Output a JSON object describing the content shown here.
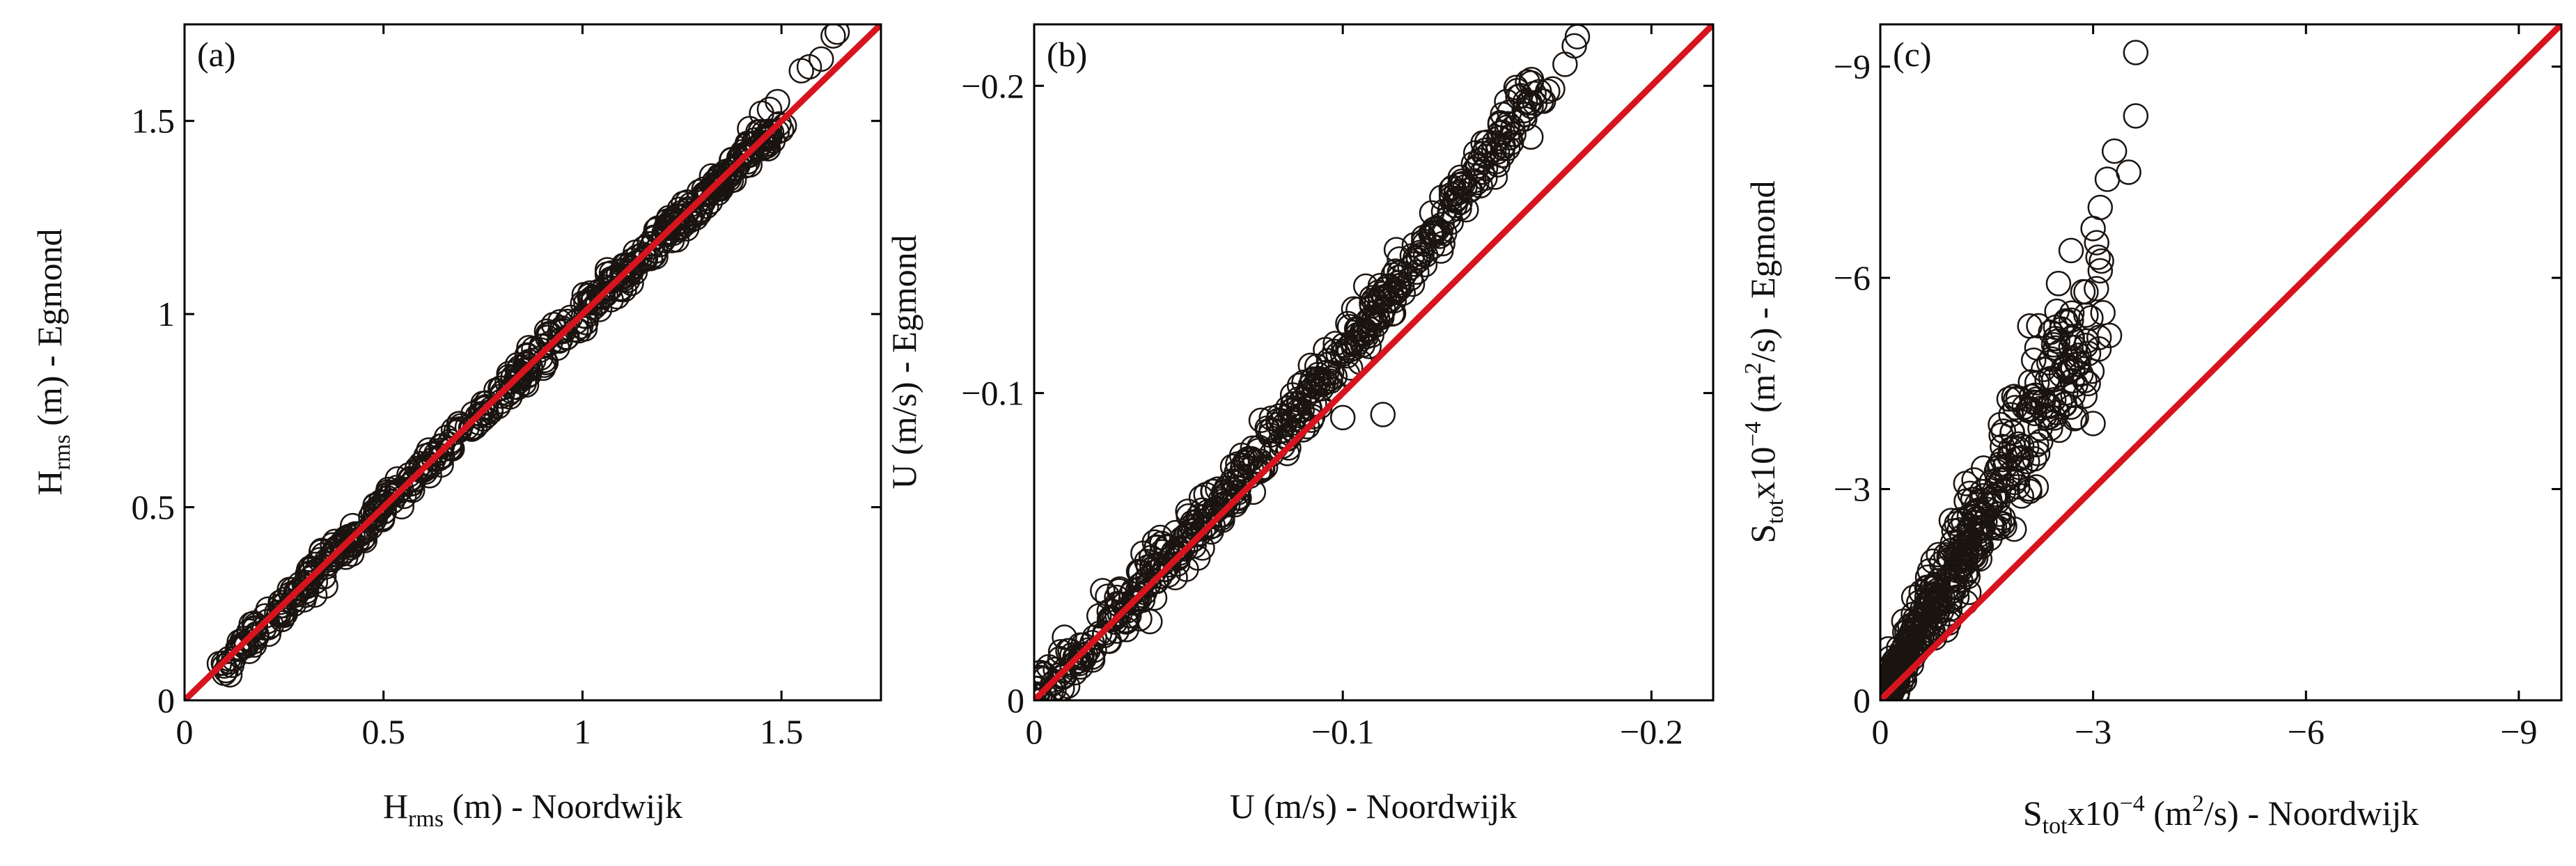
{
  "colors": {
    "marker_edge": "#1a1410",
    "reference_line": "#d7141e",
    "axes": "#000000"
  },
  "chart_data": [
    {
      "type": "scatter",
      "panel_label": "(a)",
      "marker": "open-circle",
      "xlabel": {
        "main": "H",
        "sub": "rms",
        "rest": " (m) - Noordwijk"
      },
      "ylabel": {
        "main": "H",
        "sub": "rms",
        "rest": " (m) - Egmond"
      },
      "xlim": [
        0,
        1.75
      ],
      "ylim": [
        0,
        1.75
      ],
      "xticks": [
        0,
        0.5,
        1,
        1.5
      ],
      "xticklabels": [
        "0",
        "0.5",
        "1",
        "1.5"
      ],
      "yticks": [
        0,
        0.5,
        1,
        1.5
      ],
      "yticklabels": [
        "0",
        "0.5",
        "1",
        "1.5"
      ],
      "reference_line": {
        "from": [
          0,
          0
        ],
        "to": [
          1.75,
          1.75
        ]
      },
      "cloud": {
        "x_range": [
          0.09,
          1.5
        ],
        "relation": "y ≈ 1.0·x",
        "spread": 0.018
      },
      "outliers": [
        {
          "x": 1.55,
          "y": 1.63
        },
        {
          "x": 1.57,
          "y": 1.64
        },
        {
          "x": 1.6,
          "y": 1.66
        },
        {
          "x": 1.63,
          "y": 1.72
        },
        {
          "x": 1.64,
          "y": 1.73
        },
        {
          "x": 1.45,
          "y": 1.52
        },
        {
          "x": 1.47,
          "y": 1.53
        },
        {
          "x": 1.49,
          "y": 1.55
        },
        {
          "x": 1.42,
          "y": 1.48
        },
        {
          "x": 0.25,
          "y": 0.22
        },
        {
          "x": 0.3,
          "y": 0.26
        },
        {
          "x": 0.1,
          "y": 0.07
        }
      ]
    },
    {
      "type": "scatter",
      "panel_label": "(b)",
      "marker": "open-circle",
      "xlabel": {
        "main": "U (m/s) - Noordwijk"
      },
      "ylabel": {
        "main": "U (m/s) - Egmond"
      },
      "xlim": [
        0,
        -0.22
      ],
      "ylim": [
        0,
        -0.22
      ],
      "xticks": [
        0,
        -0.1,
        -0.2
      ],
      "xticklabels": [
        "0",
        "−0.1",
        "−0.2"
      ],
      "yticks": [
        0,
        -0.1,
        -0.2
      ],
      "yticklabels": [
        "0",
        "−0.1",
        "−0.2"
      ],
      "reference_line": {
        "from": [
          0,
          0
        ],
        "to": [
          -0.22,
          -0.22
        ]
      },
      "cloud": {
        "x_range": [
          0,
          -0.165
        ],
        "relation": "y ≈ 1.0·x + 0.6·x²/0.17",
        "spread": 0.004
      },
      "outliers": [
        {
          "x": -0.175,
          "y": -0.213
        },
        {
          "x": -0.176,
          "y": -0.216
        },
        {
          "x": -0.172,
          "y": -0.207
        },
        {
          "x": -0.168,
          "y": -0.199
        },
        {
          "x": -0.165,
          "y": -0.195
        },
        {
          "x": -0.113,
          "y": -0.093
        },
        {
          "x": -0.1,
          "y": -0.092
        },
        {
          "x": -0.062,
          "y": -0.068
        },
        {
          "x": -0.05,
          "y": -0.06
        }
      ]
    },
    {
      "type": "scatter",
      "panel_label": "(c)",
      "marker": "open-circle",
      "xlabel": {
        "main": "S",
        "sub": "tot",
        "mid": "x10",
        "sup": "−4",
        "rest": " (m",
        "sup2": "2",
        "rest2": "/s) - Noordwijk"
      },
      "ylabel": {
        "main": "S",
        "sub": "tot",
        "mid": "x10",
        "sup": "−4",
        "rest": " (m",
        "sup2": "2",
        "rest2": "/s) - Egmond"
      },
      "xlim": [
        0,
        -9.6
      ],
      "ylim": [
        0,
        -9.6
      ],
      "xticks": [
        0,
        -3,
        -6,
        -9
      ],
      "xticklabels": [
        "0",
        "−3",
        "−6",
        "−9"
      ],
      "yticks": [
        0,
        -3,
        -6,
        -9
      ],
      "yticklabels": [
        "0",
        "−3",
        "−6",
        "−9"
      ],
      "reference_line": {
        "from": [
          0,
          0
        ],
        "to": [
          -9.6,
          -9.6
        ]
      },
      "cloud": {
        "x_range": [
          0,
          -2.9
        ],
        "relation": "y ≈ 1.7·x",
        "spread": 0.35
      },
      "outliers": [
        {
          "x": -3.6,
          "y": -9.2
        },
        {
          "x": -3.6,
          "y": -8.3
        },
        {
          "x": -3.3,
          "y": -7.8
        },
        {
          "x": -3.5,
          "y": -7.5
        },
        {
          "x": -3.2,
          "y": -7.4
        },
        {
          "x": -3.1,
          "y": -7.0
        },
        {
          "x": -3.0,
          "y": -6.7
        },
        {
          "x": -3.05,
          "y": -6.5
        },
        {
          "x": -3.1,
          "y": -6.1
        },
        {
          "x": -2.9,
          "y": -5.8
        },
        {
          "x": -2.7,
          "y": -5.5
        },
        {
          "x": -2.5,
          "y": -5.1
        },
        {
          "x": -2.8,
          "y": -4.9
        },
        {
          "x": -2.3,
          "y": -4.7
        },
        {
          "x": -2.6,
          "y": -4.2
        }
      ]
    }
  ]
}
